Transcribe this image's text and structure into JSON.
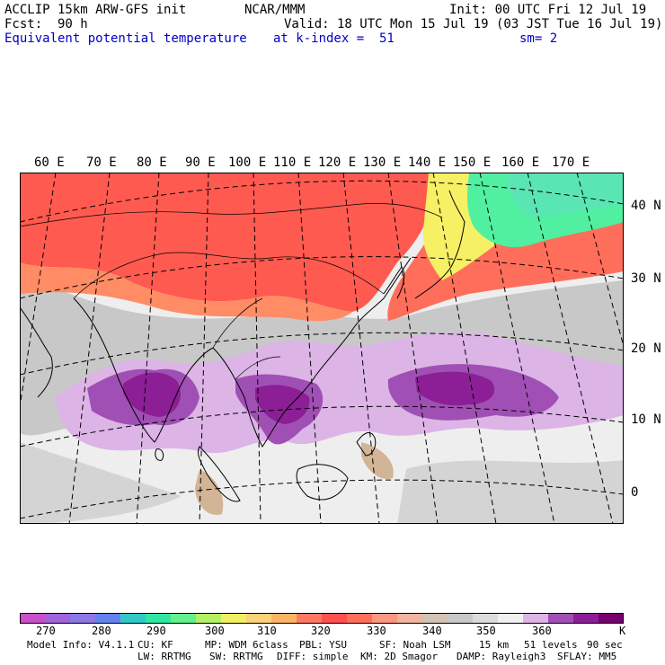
{
  "header": {
    "model": "ACCLIP 15km ARW-GFS init",
    "center": "NCAR/MMM",
    "init": "Init: 00 UTC Fri 12 Jul 19",
    "fcst_label": "Fcst:",
    "fcst_value": "90 h",
    "valid": "Valid: 18 UTC Mon 15 Jul 19 (03 JST Tue 16 Jul 19)",
    "field": "Equivalent potential temperature",
    "level": "at k-index =  51",
    "smooth": "sm= 2"
  },
  "map": {
    "lon_labels": [
      "60 E",
      "70 E",
      "80 E",
      "90 E",
      "100 E",
      "110 E",
      "120 E",
      "130 E",
      "140 E",
      "150 E",
      "160 E",
      "170 E"
    ],
    "lat_labels": [
      "40 N",
      "30 N",
      "20 N",
      "10 N",
      "0"
    ],
    "colors": {
      "north_warm": "#ff5a50",
      "north_orange": "#ff8c64",
      "jet_yellow": "#f5f064",
      "jet_green": "#50f0a0",
      "tropics_grey": "#c8c8c8",
      "tropics_light": "#eeeeee",
      "convection_light": "#dcb4e6",
      "convection_mid": "#a050b4",
      "convection_dark": "#8c1e96",
      "land_tan": "#d2b496"
    }
  },
  "colorbar": {
    "colors": [
      "#c850c8",
      "#a064dc",
      "#8c78e6",
      "#6482f0",
      "#32c8c8",
      "#32e6a0",
      "#64f08c",
      "#b4f064",
      "#f0f064",
      "#fad278",
      "#fab464",
      "#ff7864",
      "#ff5050",
      "#ff6e5a",
      "#fa9682",
      "#f0b4a0",
      "#d2c3b4",
      "#c8c8c8",
      "#dcdcdc",
      "#f0f0f0",
      "#dcb4e6",
      "#a050b4",
      "#8c1e96",
      "#78006e"
    ],
    "tick_labels": [
      "270",
      "280",
      "290",
      "300",
      "310",
      "320",
      "330",
      "340",
      "350",
      "360"
    ],
    "unit": "K"
  },
  "footer": {
    "line1": [
      "Model Info: V4.1.1",
      "CU: KF",
      "MP: WDM 6class",
      "PBL: YSU",
      "SF: Noah LSM",
      "15 km",
      "51 levels",
      "90 sec"
    ],
    "line2": [
      "LW: RRTMG",
      "SW: RRTMG",
      "DIFF: simple",
      "KM: 2D Smagor",
      "DAMP: Rayleigh3",
      "SFLAY: MM5"
    ]
  }
}
